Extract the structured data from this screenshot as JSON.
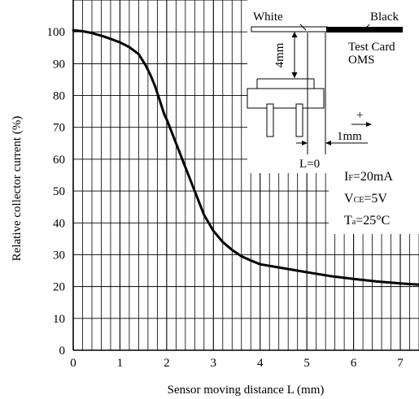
{
  "chart_data": {
    "type": "line",
    "title": "",
    "xlabel": "Sensor moving distance L (mm)",
    "ylabel": "Relative collector current (%)",
    "xlim": [
      0,
      7.4
    ],
    "ylim": [
      0,
      110
    ],
    "x_ticks": [
      "0",
      "1",
      "2",
      "3",
      "4",
      "5",
      "6",
      "7"
    ],
    "y_ticks": [
      "0",
      "10",
      "20",
      "30",
      "40",
      "50",
      "60",
      "70",
      "80",
      "90",
      "100"
    ],
    "grid": true,
    "series": [
      {
        "x": [
          0,
          0.2,
          0.4,
          0.6,
          0.8,
          1.0,
          1.2,
          1.4,
          1.55,
          1.65,
          1.75,
          1.85,
          1.95,
          2.0,
          2.2,
          2.4,
          2.6,
          2.8,
          3.0,
          3.2,
          3.4,
          3.6,
          3.8,
          4.0,
          4.4,
          5.0,
          5.5,
          6.0,
          6.5,
          7.0,
          7.4
        ],
        "y": [
          100.5,
          100.2,
          99.6,
          98.8,
          97.8,
          96.7,
          95.2,
          93.0,
          89.5,
          86.5,
          83.0,
          78.5,
          74.0,
          72.5,
          65.0,
          57.5,
          50.0,
          42.5,
          37.5,
          34.0,
          31.5,
          29.5,
          28.2,
          27.0,
          26.0,
          24.5,
          23.3,
          22.4,
          21.6,
          21.0,
          20.6
        ]
      }
    ]
  },
  "inset": {
    "white_label": "White",
    "black_label": "Black",
    "test_card_label": "Test Card",
    "oms_label": "OMS",
    "gap_label": "4mm",
    "plus_label": "+",
    "step_label": "1mm",
    "l_zero_label": "L=0"
  },
  "conditions": {
    "if_main": "I",
    "if_sub": "F",
    "if_value": "=20mA",
    "vce_main": "V",
    "vce_sub": "CE",
    "vce_value": "=5V",
    "ta_main": "T",
    "ta_sub": "a",
    "ta_value": "=25°C"
  },
  "colors": {
    "line": "#000000",
    "grid": "#000000",
    "background": "#ffffff"
  }
}
